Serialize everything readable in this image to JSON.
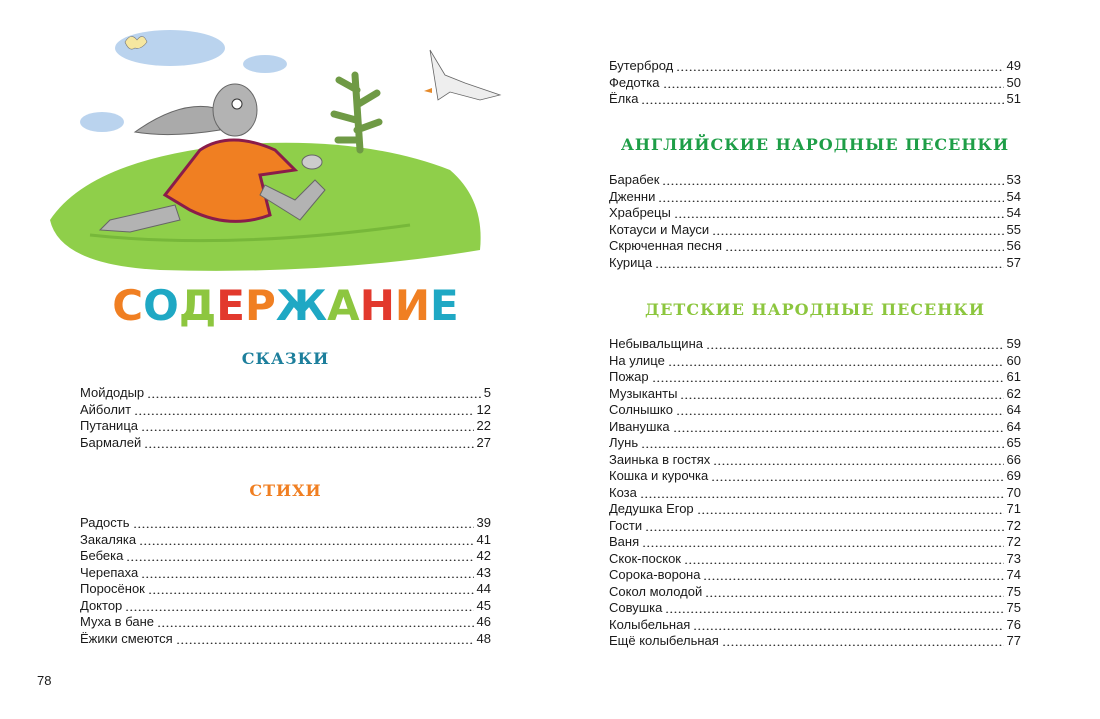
{
  "title_letters": [
    "С",
    "О",
    "Д",
    "Е",
    "Р",
    "Ж",
    "А",
    "Н",
    "И",
    "Е"
  ],
  "title_colors": [
    "#f07f22",
    "#1fa8c4",
    "#8dc63f",
    "#e2392d",
    "#f07f22",
    "#1fa8c4",
    "#8dc63f",
    "#e2392d",
    "#f07f22",
    "#1fa8c4"
  ],
  "sections": {
    "skazki": {
      "heading": "СКАЗКИ",
      "color": "#1d7f9c",
      "items": [
        {
          "name": "Мойдодыр",
          "page": "5"
        },
        {
          "name": "Айболит",
          "page": "12"
        },
        {
          "name": "Путаница",
          "page": "22"
        },
        {
          "name": "Бармалей",
          "page": "27"
        }
      ]
    },
    "stikhi": {
      "heading": "СТИХИ",
      "color": "#f07f22",
      "items": [
        {
          "name": "Радость",
          "page": "39"
        },
        {
          "name": "Закаляка",
          "page": "41"
        },
        {
          "name": "Бебека",
          "page": "42"
        },
        {
          "name": "Черепаха",
          "page": "43"
        },
        {
          "name": "Поросёнок",
          "page": "44"
        },
        {
          "name": "Доктор",
          "page": "45"
        },
        {
          "name": "Муха в бане",
          "page": "46"
        },
        {
          "name": "Ёжики смеются",
          "page": "48"
        }
      ]
    },
    "continued": {
      "items": [
        {
          "name": "Бутерброд",
          "page": "49"
        },
        {
          "name": "Федотка",
          "page": "50"
        },
        {
          "name": "Ёлка",
          "page": "51"
        }
      ]
    },
    "english": {
      "heading": "АНГЛИЙСКИЕ НАРОДНЫЕ ПЕСЕНКИ",
      "color": "#1e9e47",
      "items": [
        {
          "name": "Барабек",
          "page": "53"
        },
        {
          "name": "Дженни",
          "page": "54"
        },
        {
          "name": "Храбрецы",
          "page": "54"
        },
        {
          "name": "Котауси и Мауси",
          "page": "55"
        },
        {
          "name": "Скрюченная песня",
          "page": "56"
        },
        {
          "name": "Курица",
          "page": "57"
        }
      ]
    },
    "folk": {
      "heading": "ДЕТСКИЕ НАРОДНЫЕ ПЕСЕНКИ",
      "color": "#8cc63e",
      "items": [
        {
          "name": "Небывальщина",
          "page": "59"
        },
        {
          "name": "На улице",
          "page": "60"
        },
        {
          "name": "Пожар",
          "page": "61"
        },
        {
          "name": "Музыканты",
          "page": "62"
        },
        {
          "name": "Солнышко",
          "page": "64"
        },
        {
          "name": "Иванушка",
          "page": "64"
        },
        {
          "name": "Лунь",
          "page": "65"
        },
        {
          "name": "Заинька в гостях",
          "page": "66"
        },
        {
          "name": "Кошка и курочка",
          "page": "69"
        },
        {
          "name": "Коза",
          "page": "70"
        },
        {
          "name": "Дедушка Егор",
          "page": "71"
        },
        {
          "name": "Гости",
          "page": "72"
        },
        {
          "name": "Ваня",
          "page": "72"
        },
        {
          "name": "Скок-поскок",
          "page": "73"
        },
        {
          "name": "Сорока-ворона",
          "page": "74"
        },
        {
          "name": "Сокол молодой",
          "page": "75"
        },
        {
          "name": "Совушка",
          "page": "75"
        },
        {
          "name": "Колыбельная",
          "page": "76"
        },
        {
          "name": "Ещё колыбельная",
          "page": "77"
        }
      ]
    }
  },
  "page_number": "78"
}
